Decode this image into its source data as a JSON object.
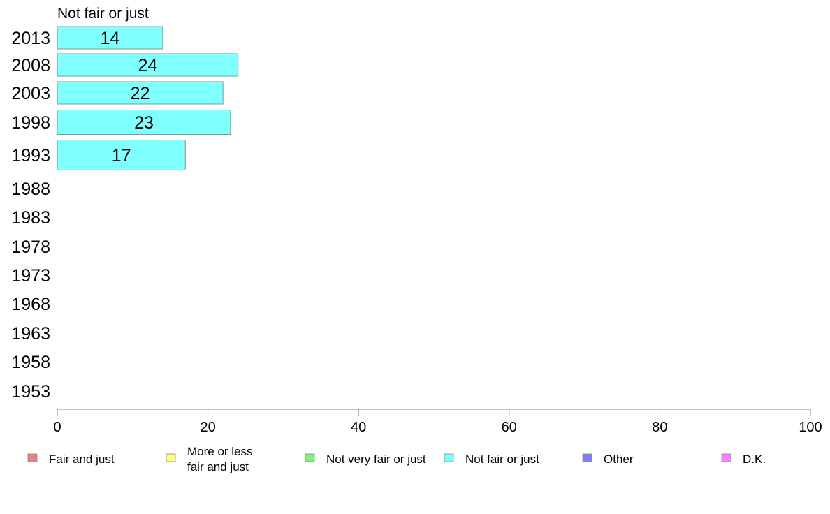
{
  "chart_data": {
    "type": "bar",
    "orientation": "horizontal",
    "title": "Not fair or just",
    "categories": [
      "2013",
      "2008",
      "2003",
      "1998",
      "1993",
      "1988",
      "1983",
      "1978",
      "1973",
      "1968",
      "1963",
      "1958",
      "1953"
    ],
    "series": [
      {
        "name": "Not fair or just",
        "color": "#80ffff",
        "values": [
          14,
          24,
          22,
          23,
          17,
          null,
          null,
          null,
          null,
          null,
          null,
          null,
          null
        ]
      }
    ],
    "xlim": [
      0,
      100
    ],
    "xticks": [
      0,
      20,
      40,
      60,
      80,
      100
    ],
    "grid": false,
    "legend": [
      {
        "label": "Fair and just",
        "color": "#f08080"
      },
      {
        "label": "More or less\nfair and just",
        "color": "#ffff80"
      },
      {
        "label": "Not very fair or just",
        "color": "#80f080"
      },
      {
        "label": "Not fair or just",
        "color": "#80ffff"
      },
      {
        "label": "Other",
        "color": "#8080f0"
      },
      {
        "label": "D.K.",
        "color": "#ff80ff"
      }
    ],
    "legend_position": "bottom"
  }
}
